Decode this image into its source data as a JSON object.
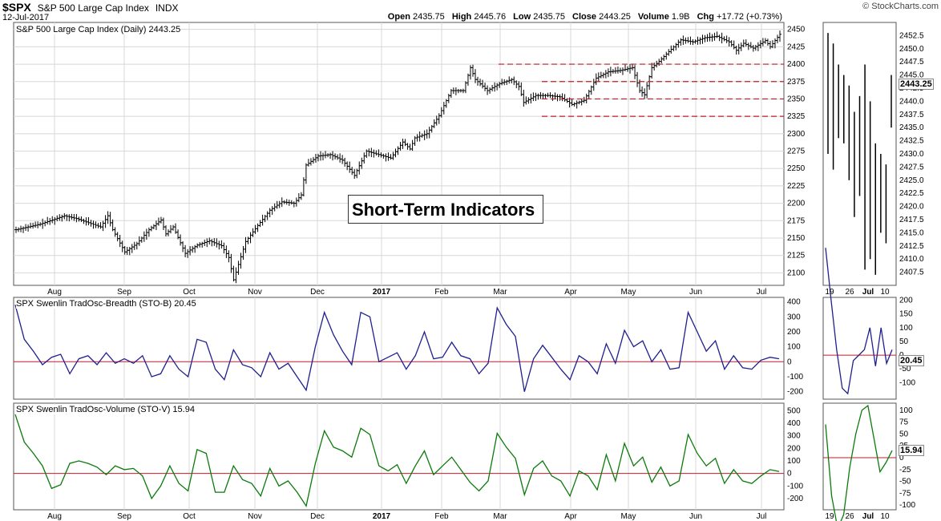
{
  "header": {
    "symbol": "$SPX",
    "name": "S&P 500 Large Cap Index",
    "exchange": "INDX",
    "date": "12-Jul-2017",
    "open_label": "Open",
    "open": "2435.75",
    "high_label": "High",
    "high": "2445.76",
    "low_label": "Low",
    "low": "2435.75",
    "close_label": "Close",
    "close": "2443.25",
    "volume_label": "Volume",
    "volume": "1.9B",
    "chg_label": "Chg",
    "chg": "+17.72 (+0.73%)",
    "brand": "© StockCharts.com"
  },
  "panel_labels": {
    "price": "S&P 500 Large Cap Index (Daily) 2443.25",
    "breadth": "SPX Swenlin TradOsc-Breadth (STO-B) 20.45",
    "volume": "SPX Swenlin TradOsc-Volume (STO-V) 15.94"
  },
  "title_box": "Short-Term Indicators",
  "tags": {
    "price": "2443.25",
    "breadth": "20.45",
    "volume": "15.94"
  },
  "chart_data": [
    {
      "type": "ohlc",
      "title": "S&P 500 Large Cap Index (Daily) 2443.25",
      "x_tick_labels": [
        "Aug",
        "Sep",
        "Oct",
        "Nov",
        "Dec",
        "2017",
        "Feb",
        "Mar",
        "Apr",
        "May",
        "Jun",
        "Jul"
      ],
      "y_ticks": [
        2100,
        2125,
        2150,
        2175,
        2200,
        2225,
        2250,
        2275,
        2300,
        2325,
        2350,
        2375,
        2400,
        2425,
        2450
      ],
      "ylim": [
        2082,
        2460
      ],
      "grid": true,
      "close_path": [
        [
          0,
          2162
        ],
        [
          10,
          2170
        ],
        [
          20,
          2182
        ],
        [
          25,
          2178
        ],
        [
          30,
          2172
        ],
        [
          35,
          2166
        ],
        [
          38,
          2182
        ],
        [
          40,
          2162
        ],
        [
          45,
          2130
        ],
        [
          50,
          2142
        ],
        [
          55,
          2162
        ],
        [
          60,
          2176
        ],
        [
          62,
          2156
        ],
        [
          65,
          2166
        ],
        [
          70,
          2128
        ],
        [
          75,
          2140
        ],
        [
          80,
          2146
        ],
        [
          85,
          2139
        ],
        [
          88,
          2122
        ],
        [
          90,
          2090
        ],
        [
          95,
          2145
        ],
        [
          100,
          2168
        ],
        [
          105,
          2190
        ],
        [
          110,
          2202
        ],
        [
          115,
          2200
        ],
        [
          118,
          2212
        ],
        [
          120,
          2255
        ],
        [
          125,
          2268
        ],
        [
          130,
          2270
        ],
        [
          135,
          2262
        ],
        [
          140,
          2240
        ],
        [
          145,
          2275
        ],
        [
          150,
          2270
        ],
        [
          155,
          2265
        ],
        [
          160,
          2288
        ],
        [
          163,
          2278
        ],
        [
          165,
          2294
        ],
        [
          170,
          2300
        ],
        [
          175,
          2326
        ],
        [
          180,
          2362
        ],
        [
          185,
          2362
        ],
        [
          188,
          2395
        ],
        [
          190,
          2378
        ],
        [
          195,
          2362
        ],
        [
          200,
          2372
        ],
        [
          205,
          2378
        ],
        [
          208,
          2368
        ],
        [
          210,
          2345
        ],
        [
          215,
          2355
        ],
        [
          220,
          2355
        ],
        [
          225,
          2353
        ],
        [
          230,
          2342
        ],
        [
          235,
          2348
        ],
        [
          240,
          2380
        ],
        [
          245,
          2389
        ],
        [
          250,
          2391
        ],
        [
          255,
          2395
        ],
        [
          258,
          2362
        ],
        [
          260,
          2356
        ],
        [
          263,
          2395
        ],
        [
          266,
          2404
        ],
        [
          270,
          2418
        ],
        [
          275,
          2435
        ],
        [
          280,
          2432
        ],
        [
          285,
          2438
        ],
        [
          290,
          2440
        ],
        [
          295,
          2432
        ],
        [
          298,
          2420
        ],
        [
          301,
          2430
        ],
        [
          305,
          2423
        ],
        [
          310,
          2434
        ],
        [
          312,
          2425
        ],
        [
          316,
          2443
        ]
      ],
      "horizontal_levels": [
        2400,
        2375,
        2350,
        2325
      ],
      "last_close": 2443.25,
      "zoom_panel": {
        "x_tick_labels": [
          "19",
          "26",
          "Jul",
          "10"
        ],
        "y_ticks": [
          2407.5,
          2410,
          2412.5,
          2415,
          2417.5,
          2420,
          2422.5,
          2425,
          2427.5,
          2430,
          2432.5,
          2435,
          2437.5,
          2440,
          2442.5,
          2445,
          2447.5,
          2450,
          2452.5
        ],
        "ylim": [
          2405,
          2455
        ],
        "bars": [
          [
            2453,
            2430
          ],
          [
            2451,
            2427
          ],
          [
            2447,
            2433
          ],
          [
            2445,
            2432
          ],
          [
            2443,
            2425
          ],
          [
            2438,
            2418
          ],
          [
            2441,
            2422
          ],
          [
            2447,
            2408
          ],
          [
            2440,
            2410
          ],
          [
            2432,
            2407
          ],
          [
            2430,
            2415
          ],
          [
            2428,
            2413
          ],
          [
            2445,
            2435
          ]
        ]
      }
    },
    {
      "type": "line",
      "title": "SPX Swenlin TradOsc-Breadth (STO-B) 20.45",
      "series": [
        {
          "name": "SPX Swenlin TradOsc-Breadth (STO-B)",
          "values": [
            380,
            150,
            70,
            -20,
            30,
            50,
            -80,
            20,
            40,
            -20,
            60,
            -10,
            20,
            -10,
            40,
            -100,
            -80,
            40,
            -50,
            -100,
            150,
            130,
            -50,
            -120,
            80,
            -20,
            -40,
            -100,
            60,
            -50,
            -10,
            -100,
            -190,
            100,
            330,
            180,
            70,
            -20,
            330,
            300,
            0,
            30,
            60,
            -50,
            40,
            200,
            20,
            30,
            130,
            40,
            20,
            -80,
            -10,
            360,
            250,
            170,
            -200,
            20,
            110,
            30,
            -50,
            -120,
            40,
            0,
            -80,
            120,
            -10,
            210,
            100,
            140,
            0,
            80,
            -50,
            -40,
            330,
            200,
            70,
            140,
            -50,
            40,
            -40,
            -50,
            10,
            30,
            20
          ]
        }
      ],
      "y_ticks": [
        -200,
        -100,
        0,
        100,
        200,
        300,
        400
      ],
      "ylim": [
        -250,
        430
      ],
      "reference_line": 0,
      "last_value": 20.45,
      "zoom_values": [
        390,
        200,
        20,
        -120,
        -140,
        -20,
        0,
        20,
        100,
        -40,
        100,
        -30,
        20
      ],
      "zoom_y_ticks": [
        -100,
        -50,
        0,
        50,
        100,
        150,
        200
      ],
      "zoom_ylim": [
        -160,
        210
      ]
    },
    {
      "type": "line",
      "title": "SPX Swenlin TradOsc-Volume (STO-V) 15.94",
      "series": [
        {
          "name": "SPX Swenlin TradOsc-Volume (STO-V)",
          "values": [
            470,
            250,
            160,
            60,
            -120,
            -90,
            80,
            100,
            80,
            50,
            -10,
            60,
            30,
            40,
            -20,
            -200,
            -100,
            60,
            -80,
            -140,
            190,
            160,
            -150,
            -150,
            60,
            -50,
            -80,
            -180,
            40,
            -100,
            -60,
            -150,
            -260,
            80,
            340,
            210,
            180,
            130,
            360,
            310,
            60,
            20,
            70,
            -80,
            60,
            180,
            -10,
            60,
            130,
            30,
            -70,
            -140,
            -60,
            320,
            210,
            120,
            -170,
            40,
            100,
            -20,
            -60,
            -180,
            20,
            -20,
            -130,
            150,
            -60,
            240,
            60,
            130,
            -70,
            50,
            -100,
            -60,
            310,
            160,
            60,
            120,
            -80,
            30,
            -60,
            -80,
            -20,
            30,
            15
          ]
        }
      ],
      "y_ticks": [
        -200,
        -100,
        0,
        100,
        200,
        300,
        400,
        500
      ],
      "ylim": [
        -290,
        560
      ],
      "reference_line": 0,
      "last_value": 15.94,
      "zoom_values": [
        70,
        -80,
        -150,
        -120,
        -20,
        50,
        100,
        110,
        40,
        -30,
        -10,
        15
      ],
      "zoom_y_ticks": [
        -100,
        -75,
        -50,
        -25,
        0,
        25,
        50,
        75,
        100
      ],
      "zoom_ylim": [
        -110,
        115
      ]
    }
  ],
  "colors": {
    "price": "#000000",
    "breadth": "#1f1f8f",
    "volume": "#0b7a0b",
    "reference": "#c21c2c",
    "grid": "#d8d8d8",
    "level": "#c21c2c"
  }
}
